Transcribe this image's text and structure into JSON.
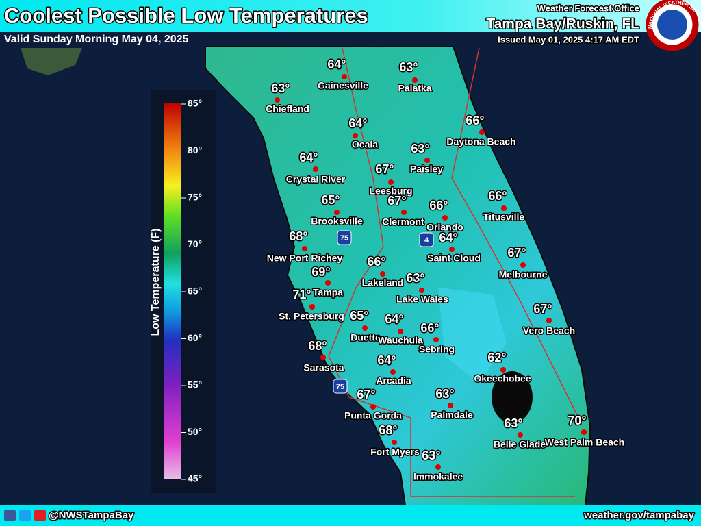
{
  "header": {
    "title": "Coolest Possible Low Temperatures",
    "subtitle": "Valid Sunday Morning May 04, 2025",
    "office": "Weather Forecast Office",
    "location": "Tampa Bay/Ruskin, FL",
    "issued": "Issued May 01, 2025 4:17 AM EDT",
    "logo_text": "NATIONAL WEATHER SERVICE"
  },
  "legend": {
    "title": "Low Temperature (F)",
    "ticks": [
      {
        "value": 85,
        "label": "85°"
      },
      {
        "value": 80,
        "label": "80°"
      },
      {
        "value": 75,
        "label": "75°"
      },
      {
        "value": 70,
        "label": "70°"
      },
      {
        "value": 65,
        "label": "65°"
      },
      {
        "value": 60,
        "label": "60°"
      },
      {
        "value": 55,
        "label": "55°"
      },
      {
        "value": 50,
        "label": "50°"
      },
      {
        "value": 45,
        "label": "45°"
      }
    ]
  },
  "cities": [
    {
      "name": "Gainesville",
      "temp": "64°"
    },
    {
      "name": "Palatka",
      "temp": "63°"
    },
    {
      "name": "Chiefland",
      "temp": "63°"
    },
    {
      "name": "Ocala",
      "temp": "64°"
    },
    {
      "name": "Daytona Beach",
      "temp": "66°"
    },
    {
      "name": "Paisley",
      "temp": "63°"
    },
    {
      "name": "Crystal River",
      "temp": "64°"
    },
    {
      "name": "Leesburg",
      "temp": "67°"
    },
    {
      "name": "Brooksville",
      "temp": "65°"
    },
    {
      "name": "Clermont",
      "temp": "67°"
    },
    {
      "name": "Orlando",
      "temp": "66°"
    },
    {
      "name": "Titusville",
      "temp": "66°"
    },
    {
      "name": "New Port Richey",
      "temp": "68°"
    },
    {
      "name": "Saint Cloud",
      "temp": "64°"
    },
    {
      "name": "Lakeland",
      "temp": "66°"
    },
    {
      "name": "Melbourne",
      "temp": "67°"
    },
    {
      "name": "Tampa",
      "temp": "69°"
    },
    {
      "name": "Lake Wales",
      "temp": "63°"
    },
    {
      "name": "St. Petersburg",
      "temp": "71°"
    },
    {
      "name": "Vero Beach",
      "temp": "67°"
    },
    {
      "name": "Duette",
      "temp": "65°"
    },
    {
      "name": "Wauchula",
      "temp": "64°"
    },
    {
      "name": "Sebring",
      "temp": "66°"
    },
    {
      "name": "Sarasota",
      "temp": "68°"
    },
    {
      "name": "Okeechobee",
      "temp": "62°"
    },
    {
      "name": "Arcadia",
      "temp": "64°"
    },
    {
      "name": "Punta Gorda",
      "temp": "67°"
    },
    {
      "name": "Palmdale",
      "temp": "63°"
    },
    {
      "name": "Belle Glade",
      "temp": "63°"
    },
    {
      "name": "West Palm Beach",
      "temp": "70°"
    },
    {
      "name": "Fort Myers",
      "temp": "68°"
    },
    {
      "name": "Immokalee",
      "temp": "63°"
    }
  ],
  "interstates": [
    "75",
    "4",
    "75"
  ],
  "footer": {
    "social": "@NWSTampaBay",
    "website": "weather.gov/tampabay"
  }
}
